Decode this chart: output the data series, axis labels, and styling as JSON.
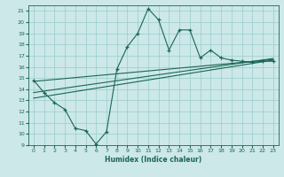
{
  "xlabel": "Humidex (Indice chaleur)",
  "bg_color": "#cce8e8",
  "grid_color": "#99cccc",
  "line_color": "#1a6655",
  "xlim": [
    -0.5,
    23.5
  ],
  "ylim": [
    9,
    21.5
  ],
  "xticks": [
    0,
    1,
    2,
    3,
    4,
    5,
    6,
    7,
    8,
    9,
    10,
    11,
    12,
    13,
    14,
    15,
    16,
    17,
    18,
    19,
    20,
    21,
    22,
    23
  ],
  "yticks": [
    9,
    10,
    11,
    12,
    13,
    14,
    15,
    16,
    17,
    18,
    19,
    20,
    21
  ],
  "series1_x": [
    0,
    1,
    2,
    3,
    4,
    5,
    6,
    7,
    8,
    9,
    10,
    11,
    12,
    13,
    14,
    15,
    16,
    17,
    18,
    19,
    20,
    21,
    22,
    23
  ],
  "series1_y": [
    14.8,
    13.7,
    12.8,
    12.2,
    10.5,
    10.3,
    9.1,
    10.2,
    15.8,
    17.8,
    19.0,
    21.2,
    20.2,
    17.5,
    19.3,
    19.3,
    16.8,
    17.5,
    16.8,
    16.6,
    16.5,
    16.4,
    16.5,
    16.5
  ],
  "line1_x": [
    0,
    23
  ],
  "line1_y": [
    13.2,
    16.6
  ],
  "line2_x": [
    0,
    23
  ],
  "line2_y": [
    13.7,
    16.75
  ],
  "line3_x": [
    0,
    23
  ],
  "line3_y": [
    14.7,
    16.65
  ]
}
